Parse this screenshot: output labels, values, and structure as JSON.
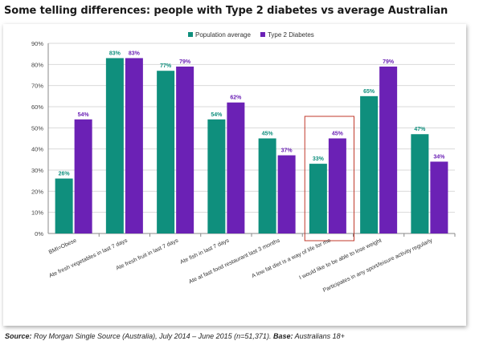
{
  "title": "Some telling differences: people with Type 2 diabetes vs average Australian",
  "footer": {
    "source_label": "Source:",
    "source_text": " Roy Morgan Single Source (Australia), July 2014 – June 2015 (n=51,371). ",
    "base_label": "Base:",
    "base_text": " Australians 18+"
  },
  "colors": {
    "population": "#0f8f7d",
    "diabetes": "#6b21b5",
    "highlight": "#c0392b"
  },
  "chart_data": {
    "type": "bar",
    "title": "",
    "xlabel": "",
    "ylabel": "",
    "ylim": [
      0,
      90
    ],
    "ytick_step": 10,
    "value_format": "percent",
    "grid": true,
    "legend_position": "top-center",
    "highlight_category_index": 5,
    "categories": [
      "BMI=Obese",
      "Ate fresh vegetables in last 7 days",
      "Ate fresh fruit in last 7 days",
      "Ate fish in last 7 days",
      "Ate at fast food restaurant last 3 months",
      "A low fat diet is a way of life for me",
      "I would like to be able to lose weight",
      "Participates in any sport/leisure activity regularly"
    ],
    "series": [
      {
        "name": "Population average",
        "values": [
          26,
          83,
          77,
          54,
          45,
          33,
          65,
          47
        ]
      },
      {
        "name": "Type 2 Diabetes",
        "values": [
          54,
          83,
          79,
          62,
          37,
          45,
          79,
          34
        ]
      }
    ]
  }
}
